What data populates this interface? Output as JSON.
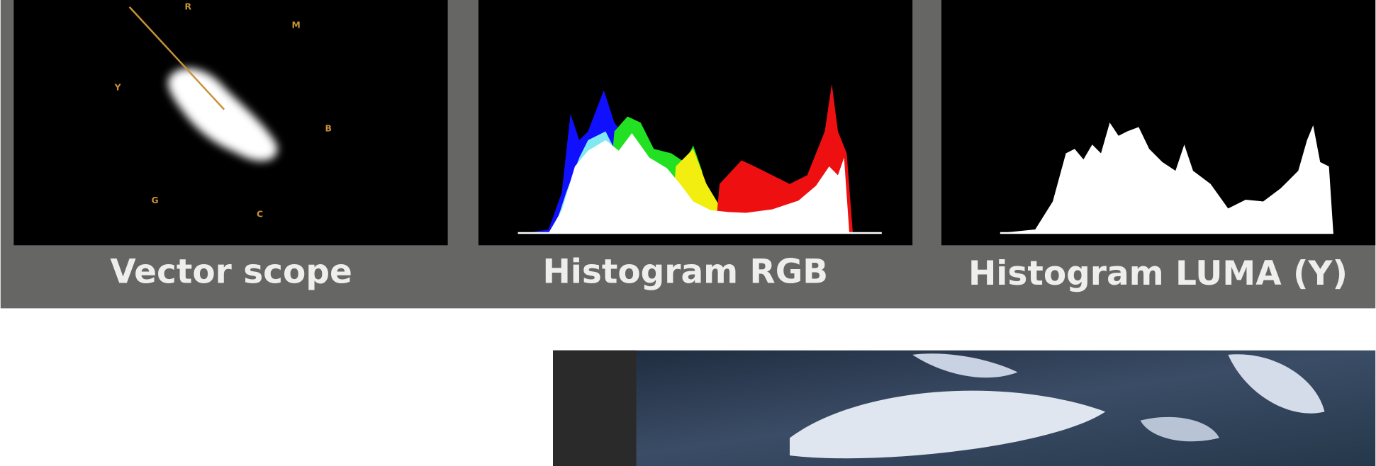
{
  "panels": [
    {
      "title": "Vector scope"
    },
    {
      "title": "Histogram RGB"
    },
    {
      "title": "Histogram LUMA (Y)"
    }
  ],
  "vectorscope": {
    "markers": [
      "R",
      "M",
      "Y",
      "B",
      "G",
      "C"
    ]
  }
}
